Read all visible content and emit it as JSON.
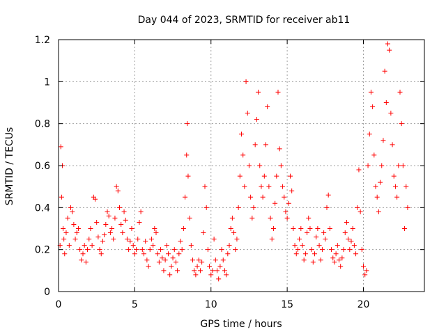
{
  "chart_data": {
    "type": "scatter",
    "title": "Day 044 of 2023, SRMTID for receiver ab11",
    "xlabel": "GPS time / hours",
    "ylabel": "SRMTID / TECUs",
    "xlim": [
      0,
      24
    ],
    "ylim": [
      0,
      1.2
    ],
    "xticks": [
      0,
      5,
      10,
      15,
      20
    ],
    "xtick_labels": [
      "0",
      "5",
      "10",
      "15",
      "20"
    ],
    "yticks": [
      0,
      0.2,
      0.4,
      0.6,
      0.8,
      1.0,
      1.2
    ],
    "ytick_labels": [
      "0",
      "0.2",
      "0.4",
      "0.6",
      "0.8",
      "1",
      "1.2"
    ],
    "grid": true,
    "marker": "+",
    "color": "#ff0000",
    "series": [
      {
        "name": "SRMTID",
        "points": [
          [
            0.1,
            0.22
          ],
          [
            0.15,
            0.69
          ],
          [
            0.2,
            0.45
          ],
          [
            0.25,
            0.6
          ],
          [
            0.3,
            0.3
          ],
          [
            0.35,
            0.25
          ],
          [
            0.4,
            0.18
          ],
          [
            0.5,
            0.28
          ],
          [
            0.6,
            0.35
          ],
          [
            0.7,
            0.22
          ],
          [
            0.8,
            0.4
          ],
          [
            0.9,
            0.38
          ],
          [
            1.0,
            0.32
          ],
          [
            1.1,
            0.25
          ],
          [
            1.2,
            0.28
          ],
          [
            1.3,
            0.3
          ],
          [
            1.4,
            0.2
          ],
          [
            1.5,
            0.15
          ],
          [
            1.6,
            0.18
          ],
          [
            1.7,
            0.22
          ],
          [
            1.8,
            0.14
          ],
          [
            1.9,
            0.2
          ],
          [
            2.0,
            0.25
          ],
          [
            2.1,
            0.3
          ],
          [
            2.2,
            0.22
          ],
          [
            2.3,
            0.45
          ],
          [
            2.4,
            0.44
          ],
          [
            2.5,
            0.33
          ],
          [
            2.6,
            0.26
          ],
          [
            2.7,
            0.2
          ],
          [
            2.8,
            0.18
          ],
          [
            2.9,
            0.24
          ],
          [
            3.0,
            0.27
          ],
          [
            3.1,
            0.32
          ],
          [
            3.2,
            0.38
          ],
          [
            3.3,
            0.36
          ],
          [
            3.4,
            0.28
          ],
          [
            3.5,
            0.3
          ],
          [
            3.6,
            0.25
          ],
          [
            3.7,
            0.35
          ],
          [
            3.8,
            0.5
          ],
          [
            3.9,
            0.48
          ],
          [
            4.0,
            0.4
          ],
          [
            4.1,
            0.32
          ],
          [
            4.2,
            0.28
          ],
          [
            4.3,
            0.38
          ],
          [
            4.4,
            0.34
          ],
          [
            4.5,
            0.25
          ],
          [
            4.6,
            0.2
          ],
          [
            4.7,
            0.24
          ],
          [
            4.8,
            0.3
          ],
          [
            4.9,
            0.22
          ],
          [
            5.0,
            0.18
          ],
          [
            5.1,
            0.2
          ],
          [
            5.2,
            0.25
          ],
          [
            5.3,
            0.33
          ],
          [
            5.4,
            0.38
          ],
          [
            5.5,
            0.2
          ],
          [
            5.6,
            0.18
          ],
          [
            5.7,
            0.24
          ],
          [
            5.8,
            0.15
          ],
          [
            5.9,
            0.12
          ],
          [
            6.0,
            0.2
          ],
          [
            6.1,
            0.25
          ],
          [
            6.2,
            0.22
          ],
          [
            6.3,
            0.3
          ],
          [
            6.4,
            0.28
          ],
          [
            6.5,
            0.18
          ],
          [
            6.6,
            0.14
          ],
          [
            6.7,
            0.2
          ],
          [
            6.8,
            0.16
          ],
          [
            6.9,
            0.1
          ],
          [
            7.0,
            0.15
          ],
          [
            7.1,
            0.22
          ],
          [
            7.2,
            0.18
          ],
          [
            7.3,
            0.08
          ],
          [
            7.4,
            0.12
          ],
          [
            7.5,
            0.16
          ],
          [
            7.6,
            0.2
          ],
          [
            7.7,
            0.14
          ],
          [
            7.8,
            0.1
          ],
          [
            7.9,
            0.18
          ],
          [
            8.0,
            0.24
          ],
          [
            8.1,
            0.2
          ],
          [
            8.2,
            0.3
          ],
          [
            8.3,
            0.45
          ],
          [
            8.4,
            0.65
          ],
          [
            8.45,
            0.8
          ],
          [
            8.5,
            0.55
          ],
          [
            8.6,
            0.35
          ],
          [
            8.7,
            0.22
          ],
          [
            8.8,
            0.15
          ],
          [
            8.9,
            0.1
          ],
          [
            9.0,
            0.08
          ],
          [
            9.1,
            0.12
          ],
          [
            9.2,
            0.15
          ],
          [
            9.3,
            0.1
          ],
          [
            9.4,
            0.14
          ],
          [
            9.5,
            0.28
          ],
          [
            9.6,
            0.5
          ],
          [
            9.7,
            0.4
          ],
          [
            9.8,
            0.2
          ],
          [
            9.9,
            0.12
          ],
          [
            10.0,
            0.08
          ],
          [
            10.1,
            0.1
          ],
          [
            10.2,
            0.25
          ],
          [
            10.3,
            0.15
          ],
          [
            10.4,
            0.1
          ],
          [
            10.5,
            0.06
          ],
          [
            10.6,
            0.12
          ],
          [
            10.7,
            0.2
          ],
          [
            10.8,
            0.15
          ],
          [
            10.9,
            0.1
          ],
          [
            11.0,
            0.08
          ],
          [
            11.1,
            0.18
          ],
          [
            11.2,
            0.22
          ],
          [
            11.3,
            0.3
          ],
          [
            11.4,
            0.35
          ],
          [
            11.5,
            0.28
          ],
          [
            11.6,
            0.2
          ],
          [
            11.7,
            0.25
          ],
          [
            11.8,
            0.4
          ],
          [
            11.9,
            0.55
          ],
          [
            12.0,
            0.75
          ],
          [
            12.1,
            0.65
          ],
          [
            12.2,
            0.5
          ],
          [
            12.3,
            1.0
          ],
          [
            12.4,
            0.85
          ],
          [
            12.5,
            0.6
          ],
          [
            12.6,
            0.45
          ],
          [
            12.7,
            0.35
          ],
          [
            12.8,
            0.4
          ],
          [
            12.9,
            0.7
          ],
          [
            13.0,
            0.82
          ],
          [
            13.1,
            0.95
          ],
          [
            13.2,
            0.6
          ],
          [
            13.3,
            0.5
          ],
          [
            13.4,
            0.45
          ],
          [
            13.5,
            0.55
          ],
          [
            13.6,
            0.7
          ],
          [
            13.7,
            0.88
          ],
          [
            13.8,
            0.5
          ],
          [
            13.9,
            0.35
          ],
          [
            14.0,
            0.25
          ],
          [
            14.1,
            0.3
          ],
          [
            14.2,
            0.42
          ],
          [
            14.3,
            0.55
          ],
          [
            14.4,
            0.95
          ],
          [
            14.5,
            0.68
          ],
          [
            14.6,
            0.6
          ],
          [
            14.7,
            0.5
          ],
          [
            14.8,
            0.45
          ],
          [
            14.9,
            0.38
          ],
          [
            15.0,
            0.35
          ],
          [
            15.1,
            0.42
          ],
          [
            15.2,
            0.55
          ],
          [
            15.3,
            0.48
          ],
          [
            15.4,
            0.3
          ],
          [
            15.5,
            0.22
          ],
          [
            15.6,
            0.18
          ],
          [
            15.7,
            0.2
          ],
          [
            15.8,
            0.25
          ],
          [
            15.9,
            0.3
          ],
          [
            16.0,
            0.22
          ],
          [
            16.1,
            0.15
          ],
          [
            16.2,
            0.18
          ],
          [
            16.3,
            0.28
          ],
          [
            16.4,
            0.35
          ],
          [
            16.5,
            0.3
          ],
          [
            16.6,
            0.2
          ],
          [
            16.7,
            0.14
          ],
          [
            16.8,
            0.18
          ],
          [
            16.9,
            0.26
          ],
          [
            17.0,
            0.3
          ],
          [
            17.1,
            0.22
          ],
          [
            17.2,
            0.15
          ],
          [
            17.3,
            0.2
          ],
          [
            17.4,
            0.28
          ],
          [
            17.5,
            0.25
          ],
          [
            17.6,
            0.4
          ],
          [
            17.7,
            0.46
          ],
          [
            17.8,
            0.3
          ],
          [
            17.9,
            0.2
          ],
          [
            18.0,
            0.16
          ],
          [
            18.1,
            0.14
          ],
          [
            18.2,
            0.18
          ],
          [
            18.3,
            0.22
          ],
          [
            18.4,
            0.15
          ],
          [
            18.5,
            0.12
          ],
          [
            18.6,
            0.16
          ],
          [
            18.7,
            0.2
          ],
          [
            18.8,
            0.28
          ],
          [
            18.9,
            0.33
          ],
          [
            19.0,
            0.25
          ],
          [
            19.1,
            0.2
          ],
          [
            19.2,
            0.24
          ],
          [
            19.3,
            0.3
          ],
          [
            19.4,
            0.22
          ],
          [
            19.5,
            0.18
          ],
          [
            19.6,
            0.4
          ],
          [
            19.7,
            0.58
          ],
          [
            19.8,
            0.38
          ],
          [
            19.9,
            0.2
          ],
          [
            20.0,
            0.12
          ],
          [
            20.1,
            0.08
          ],
          [
            20.2,
            0.1
          ],
          [
            20.3,
            0.6
          ],
          [
            20.4,
            0.75
          ],
          [
            20.5,
            0.95
          ],
          [
            20.6,
            0.88
          ],
          [
            20.7,
            0.65
          ],
          [
            20.8,
            0.5
          ],
          [
            20.9,
            0.45
          ],
          [
            21.0,
            0.38
          ],
          [
            21.1,
            0.52
          ],
          [
            21.2,
            0.6
          ],
          [
            21.3,
            0.72
          ],
          [
            21.4,
            1.05
          ],
          [
            21.5,
            0.9
          ],
          [
            21.6,
            1.18
          ],
          [
            21.7,
            1.15
          ],
          [
            21.8,
            0.85
          ],
          [
            21.9,
            0.7
          ],
          [
            22.0,
            0.55
          ],
          [
            22.1,
            0.5
          ],
          [
            22.2,
            0.45
          ],
          [
            22.3,
            0.6
          ],
          [
            22.4,
            0.95
          ],
          [
            22.5,
            0.8
          ],
          [
            22.6,
            0.6
          ],
          [
            22.7,
            0.3
          ],
          [
            22.8,
            0.5
          ],
          [
            22.9,
            0.4
          ]
        ]
      }
    ]
  }
}
